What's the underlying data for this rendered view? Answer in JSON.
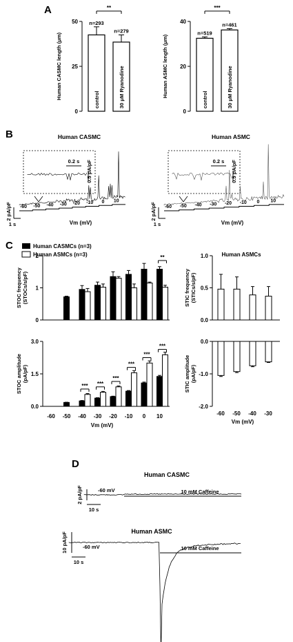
{
  "panel_labels": {
    "a": "A",
    "b": "B",
    "c": "C",
    "d": "D"
  },
  "chart_data": [
    {
      "type": "bar",
      "panel": "A-left",
      "ylabel": "Human CASMC length (μm)",
      "yticks": [
        "0",
        "25",
        "50"
      ],
      "ylim": [
        0,
        50
      ],
      "categories": [
        "control",
        "30 μM Ryanodine"
      ],
      "values": [
        42.5,
        38.5
      ],
      "errors": [
        4.5,
        4.0
      ],
      "n_labels": [
        "n=293",
        "n=279"
      ],
      "significance": "**"
    },
    {
      "type": "bar",
      "panel": "A-right",
      "ylabel": "Human ASMC length (μm)",
      "yticks": [
        "0",
        "20",
        "40"
      ],
      "ylim": [
        0,
        40
      ],
      "categories": [
        "control",
        "30 μM Ryanodine"
      ],
      "values": [
        32.5,
        36.2
      ],
      "errors": [
        0.6,
        0.6
      ],
      "n_labels": [
        "n=519",
        "n=461"
      ],
      "significance": "***"
    },
    {
      "type": "line",
      "panel": "B-left",
      "title": "Human CASMC",
      "xlabel": "Vm (mV)",
      "xticks": [
        "-60",
        "-50",
        "-40",
        "-30",
        "-20",
        "-10",
        "0",
        "10"
      ],
      "scale_y": "2 pA/pF",
      "scale_x": "1 s",
      "inset_scale_x": "0.2 s",
      "inset_scale_y": "0.5 pA/pF"
    },
    {
      "type": "line",
      "panel": "B-right",
      "title": "Human ASMC",
      "xlabel": "Vm (mV)",
      "xticks": [
        "-60",
        "-50",
        "-40",
        "-30",
        "-20",
        "-10",
        "0",
        "10"
      ],
      "scale_y": "2 pA/pF",
      "scale_x": "1 s",
      "inset_scale_x": "0.2 s",
      "inset_scale_y": "0.5 pA/pF"
    },
    {
      "type": "bar",
      "panel": "C-frequency",
      "ylabel": "STOC frequency (STOCs/s/pF)",
      "yticks": [
        "0",
        "1",
        "2"
      ],
      "ylim": [
        0,
        2
      ],
      "categories": [
        "-60",
        "-50",
        "-40",
        "-30",
        "-20",
        "-10",
        "0",
        "10"
      ],
      "series": [
        {
          "name": "Human CASMCs (n=3)",
          "values": [
            null,
            0.72,
            0.95,
            1.08,
            1.35,
            1.42,
            1.58,
            1.58
          ],
          "errors": [
            null,
            0.02,
            0.12,
            0.1,
            0.15,
            0.12,
            0.18,
            0.08
          ]
        },
        {
          "name": "Human ASMCs (n=3)",
          "values": [
            null,
            null,
            0.88,
            1.02,
            1.3,
            1.0,
            1.15,
            1.02
          ],
          "errors": [
            null,
            null,
            0.1,
            0.1,
            0.05,
            0.12,
            0.03,
            0.06
          ]
        }
      ],
      "significance": [
        {
          "category": "10",
          "label": "**"
        }
      ]
    },
    {
      "type": "bar",
      "panel": "C-amplitude",
      "ylabel": "STOC amplitude (pA/pF)",
      "xlabel": "Vm (mV)",
      "yticks": [
        "0.0",
        "1.5",
        "3.0"
      ],
      "ylim": [
        0,
        3
      ],
      "categories": [
        "-60",
        "-50",
        "-40",
        "-30",
        "-20",
        "-10",
        "0",
        "10"
      ],
      "series": [
        {
          "name": "Human CASMCs (n=3)",
          "values": [
            null,
            0.18,
            0.25,
            0.38,
            0.45,
            0.7,
            1.08,
            1.38
          ],
          "errors": [
            null,
            0.01,
            0.02,
            0.02,
            0.02,
            0.03,
            0.04,
            0.05
          ]
        },
        {
          "name": "Human ASMCs (n=3)",
          "values": [
            null,
            null,
            0.55,
            0.65,
            0.9,
            1.55,
            2.0,
            2.38
          ],
          "errors": [
            null,
            null,
            0.04,
            0.04,
            0.04,
            0.1,
            0.1,
            0.12
          ]
        }
      ],
      "significance": [
        {
          "category": "-40",
          "label": "***"
        },
        {
          "category": "-30",
          "label": "***"
        },
        {
          "category": "-20",
          "label": "***"
        },
        {
          "category": "-10",
          "label": "***"
        },
        {
          "category": "0",
          "label": "***"
        },
        {
          "category": "10",
          "label": "***"
        }
      ]
    },
    {
      "type": "bar",
      "panel": "C-STIC-frequency",
      "title": "Human ASMCs",
      "ylabel": "STIC frequency (STICs/s/pF)",
      "yticks": [
        "0.0",
        "0.5",
        "1.0"
      ],
      "ylim": [
        0,
        1
      ],
      "categories": [
        "-60",
        "-50",
        "-40",
        "-30"
      ],
      "values": [
        0.48,
        0.48,
        0.39,
        0.37
      ],
      "errors": [
        0.23,
        0.19,
        0.13,
        0.15
      ]
    },
    {
      "type": "bar",
      "panel": "C-STIC-amplitude",
      "ylabel": "STIC amplitude (pA/pF)",
      "xlabel": "Vm (mV)",
      "yticks": [
        "-2.0",
        "-1.0",
        "0.0"
      ],
      "ylim": [
        -2,
        0
      ],
      "categories": [
        "-60",
        "-50",
        "-40",
        "-30"
      ],
      "values": [
        -1.05,
        -0.93,
        -0.75,
        -0.63
      ],
      "errors": [
        0.03,
        0.03,
        0.03,
        0.02
      ]
    },
    {
      "type": "line",
      "panel": "D-top",
      "title": "Human CASMC",
      "holding": "-60 mV",
      "drug": "10 mM Caffeine",
      "scale_y": "2 pA/pF",
      "scale_x": "10 s"
    },
    {
      "type": "line",
      "panel": "D-bottom",
      "title": "Human ASMC",
      "holding": "-60 mV",
      "drug": "10 mM Caffeine",
      "scale_y": "10 pA/pF",
      "scale_x": "10 s"
    }
  ]
}
